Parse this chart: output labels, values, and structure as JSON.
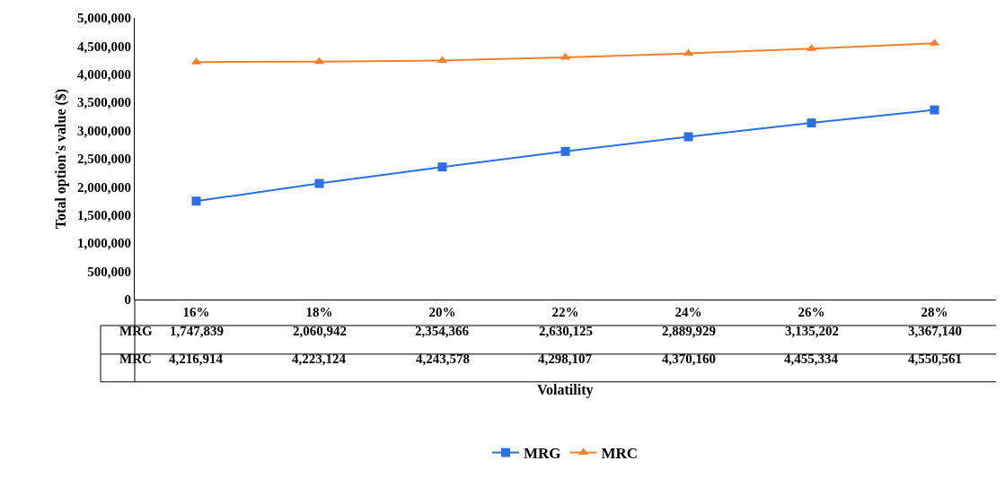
{
  "chart_data": {
    "type": "line",
    "xlabel": "Volatility",
    "ylabel": "Total option's value ($)",
    "categories": [
      "16%",
      "18%",
      "20%",
      "22%",
      "24%",
      "26%",
      "28%"
    ],
    "series": [
      {
        "name": "MRG",
        "color": "#2b6fe6",
        "marker": "square",
        "values": [
          1747839,
          2060942,
          2354366,
          2630125,
          2889929,
          3135202,
          3367140
        ],
        "value_labels": [
          "1,747,839",
          "2,060,942",
          "2,354,366",
          "2,630,125",
          "2,889,929",
          "3,135,202",
          "3,367,140"
        ]
      },
      {
        "name": "MRC",
        "color": "#f5802b",
        "marker": "triangle",
        "values": [
          4216914,
          4223124,
          4243578,
          4298107,
          4370160,
          4455334,
          4550561
        ],
        "value_labels": [
          "4,216,914",
          "4,223,124",
          "4,243,578",
          "4,298,107",
          "4,370,160",
          "4,455,334",
          "4,550,561"
        ]
      }
    ],
    "ylim": [
      0,
      5000000
    ],
    "yticks": [
      0,
      {
        "value": 500000,
        "label": "500,000"
      },
      {
        "value": 1000000,
        "label": "1,000,000"
      },
      {
        "value": 1500000,
        "label": "1,500,000"
      },
      {
        "value": 2000000,
        "label": "2,000,000"
      },
      {
        "value": 2500000,
        "label": "2,500,000"
      },
      {
        "value": 3000000,
        "label": "3,000,000"
      },
      {
        "value": 3500000,
        "label": "3,500,000"
      },
      {
        "value": 4000000,
        "label": "4,000,000"
      },
      {
        "value": 4500000,
        "label": "4,500,000"
      },
      {
        "value": 5000000,
        "label": "5,000,000"
      }
    ],
    "legend": "bottom",
    "line_style": "solid"
  }
}
